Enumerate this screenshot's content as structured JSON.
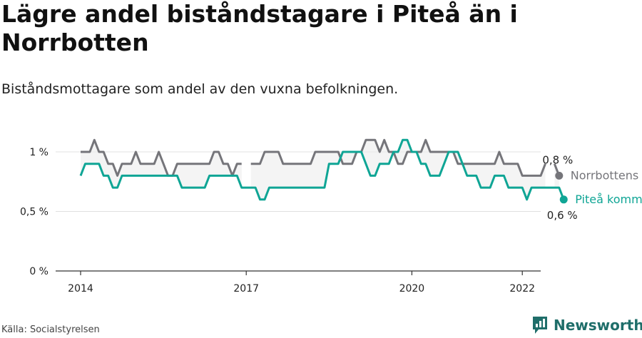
{
  "title": "Lägre andel biståndstagare i Piteå än i Norrbotten",
  "subtitle": "Biståndsmottagare som andel av den vuxna befolkningen.",
  "source": "Källa: Socialstyrelsen",
  "brand": {
    "name": "Newsworthy",
    "color": "#1f6e6a"
  },
  "chart_data": {
    "type": "line",
    "title": "Lägre andel biståndstagare i Piteå än i Norrbotten",
    "subtitle": "Biståndsmottagare som andel av den vuxna befolkningen.",
    "xlabel": "",
    "ylabel": "",
    "ylim": [
      0,
      1.1
    ],
    "xlim": [
      2014.0,
      2022.3333
    ],
    "grid": true,
    "x_ticks": [
      {
        "value": 2014,
        "label": "2014"
      },
      {
        "value": 2017,
        "label": "2017"
      },
      {
        "value": 2020,
        "label": "2020"
      },
      {
        "value": 2022,
        "label": "2022"
      }
    ],
    "y_ticks": [
      {
        "value": 0,
        "label": "0 %"
      },
      {
        "value": 0.5,
        "label": "0,5 %"
      },
      {
        "value": 1,
        "label": "1 %"
      }
    ],
    "x_start": 2014.0,
    "x_step": 0.083333,
    "series": [
      {
        "name": "Norrbottens län",
        "color": "#75757a",
        "end_label": "0,8 %",
        "values": [
          1,
          1,
          1,
          1.1,
          1,
          1,
          0.9,
          0.9,
          0.8,
          0.9,
          0.9,
          0.9,
          1,
          0.9,
          0.9,
          0.9,
          0.9,
          1,
          0.9,
          0.8,
          0.8,
          0.9,
          0.9,
          0.9,
          0.9,
          0.9,
          0.9,
          0.9,
          0.9,
          1,
          1,
          0.9,
          0.9,
          0.8,
          0.9,
          0.9,
          null,
          0.9,
          0.9,
          0.9,
          1,
          1,
          1,
          1,
          0.9,
          0.9,
          0.9,
          0.9,
          0.9,
          0.9,
          0.9,
          1,
          1,
          1,
          1,
          1,
          1,
          0.9,
          0.9,
          0.9,
          1,
          1,
          1.1,
          1.1,
          1.1,
          1,
          1.1,
          1,
          1,
          0.9,
          0.9,
          1,
          1,
          1,
          1,
          1.1,
          1,
          1,
          1,
          1,
          1,
          1,
          0.9,
          0.9,
          0.9,
          0.9,
          0.9,
          0.9,
          0.9,
          0.9,
          0.9,
          1,
          0.9,
          0.9,
          0.9,
          0.9,
          0.8,
          0.8,
          0.8,
          0.8,
          0.8,
          0.9,
          null,
          0.9,
          0.8
        ]
      },
      {
        "name": "Piteå kommun",
        "color": "#0fa595",
        "end_label": "0,6 %",
        "values": [
          0.8,
          0.9,
          0.9,
          0.9,
          0.9,
          0.8,
          0.8,
          0.7,
          0.7,
          0.8,
          0.8,
          0.8,
          0.8,
          0.8,
          0.8,
          0.8,
          0.8,
          0.8,
          0.8,
          0.8,
          0.8,
          0.8,
          0.7,
          0.7,
          0.7,
          0.7,
          0.7,
          0.7,
          0.8,
          0.8,
          0.8,
          0.8,
          0.8,
          0.8,
          0.8,
          0.7,
          0.7,
          0.7,
          0.7,
          0.6,
          0.6,
          0.7,
          0.7,
          0.7,
          0.7,
          0.7,
          0.7,
          0.7,
          0.7,
          0.7,
          0.7,
          0.7,
          0.7,
          0.7,
          0.9,
          0.9,
          0.9,
          1,
          1,
          1,
          1,
          1,
          0.9,
          0.8,
          0.8,
          0.9,
          0.9,
          0.9,
          1,
          1,
          1.1,
          1.1,
          1,
          1,
          0.9,
          0.9,
          0.8,
          0.8,
          0.8,
          0.9,
          1,
          1,
          1,
          0.9,
          0.8,
          0.8,
          0.8,
          0.7,
          0.7,
          0.7,
          0.8,
          0.8,
          0.8,
          0.7,
          0.7,
          0.7,
          0.7,
          0.6,
          0.7,
          0.7,
          0.7,
          0.7,
          0.7,
          0.7,
          0.7,
          0.6
        ]
      }
    ]
  }
}
